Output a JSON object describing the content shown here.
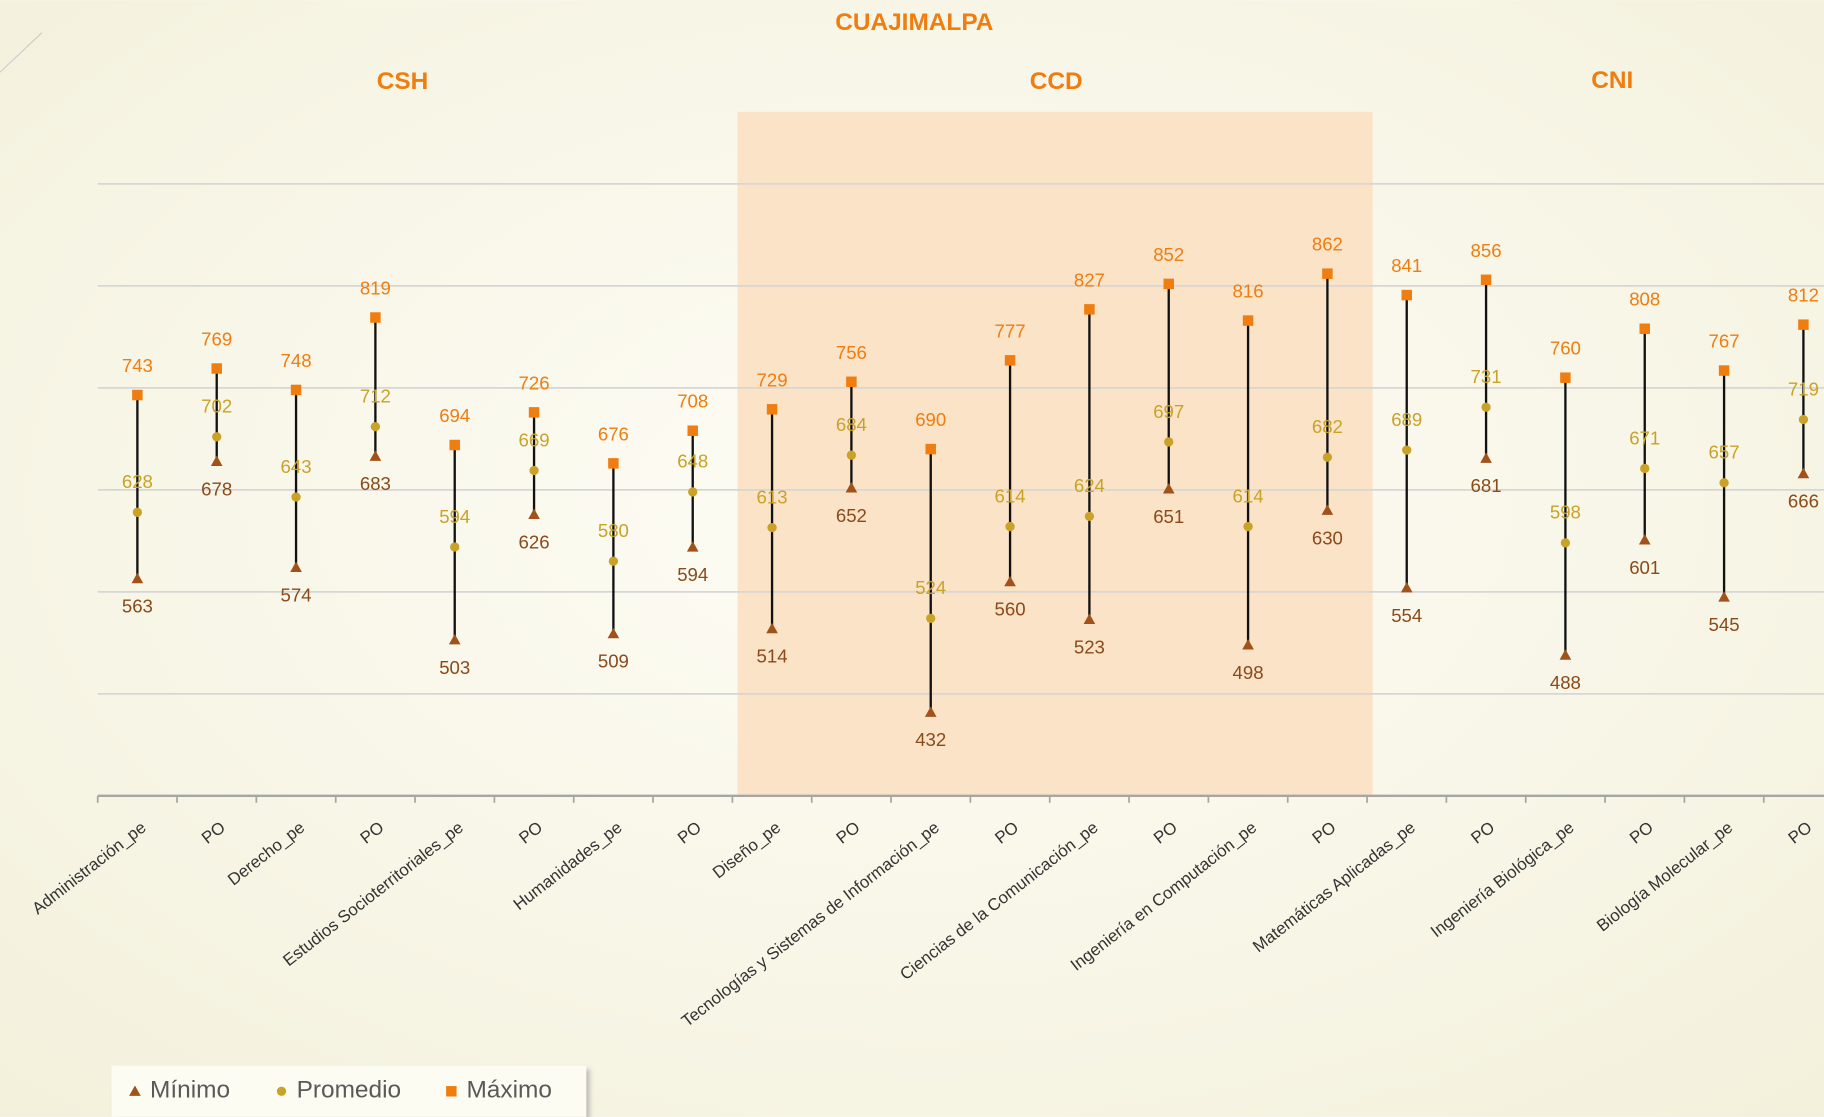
{
  "chart_data": {
    "type": "stock",
    "title": "CUAJIMALPA",
    "annotations": [
      "CSH",
      "CCD",
      "CNI"
    ],
    "categories": [
      "Administración_pe",
      "PO",
      "Derecho_pe",
      "PO",
      "Estudios Socioterritoriales_pe",
      "PO",
      "Humanidades_pe",
      "PO",
      "Diseño_pe",
      "PO",
      "Tecnologías y Sistemas de Información_pe",
      "PO",
      "Ciencias de la Comunicación_pe",
      "PO",
      "Ingeniería en Computación_pe",
      "PO",
      "Matemáticas Aplicadas_pe",
      "PO",
      "Ingeniería Biológica_pe",
      "PO",
      "Biología Molecular_pe",
      "PO"
    ],
    "series": [
      {
        "name": "Mínimo",
        "color": "#a0521a",
        "values": [
          563,
          678,
          574,
          683,
          503,
          626,
          509,
          594,
          514,
          652,
          432,
          560,
          523,
          651,
          498,
          630,
          554,
          681,
          488,
          601,
          545,
          666
        ]
      },
      {
        "name": "Promedio",
        "color": "#c9a227",
        "values": [
          628,
          702,
          643,
          712,
          594,
          669,
          580,
          648,
          613,
          684,
          524,
          614,
          624,
          697,
          614,
          682,
          689,
          731,
          598,
          671,
          657,
          719
        ]
      },
      {
        "name": "Máximo",
        "color": "#ef7d0f",
        "values": [
          743,
          769,
          748,
          819,
          694,
          726,
          676,
          708,
          729,
          756,
          690,
          777,
          827,
          852,
          816,
          862,
          841,
          856,
          760,
          808,
          767,
          812
        ]
      }
    ],
    "ylim": [
      350,
      950
    ],
    "yticks": [
      450,
      550,
      650,
      750,
      850,
      950
    ],
    "grid": true
  }
}
